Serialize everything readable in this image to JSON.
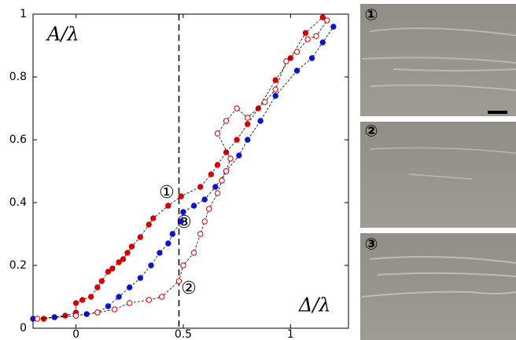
{
  "chart_data": {
    "type": "scatter",
    "y_label": "A/λ",
    "x_label": "Δ/λ",
    "xlim": [
      -0.2,
      1.27
    ],
    "ylim": [
      0,
      1
    ],
    "xticks": [
      0,
      0.5,
      1
    ],
    "yticks": [
      0,
      0.2,
      0.4,
      0.6,
      0.8,
      1
    ],
    "vline": 0.48,
    "annotations": [
      "①",
      "②",
      "③"
    ],
    "series": [
      {
        "color": "#d40000",
        "filled": true,
        "x": [
          -0.2,
          -0.15,
          -0.1,
          -0.05,
          0,
          0,
          0.03,
          0.07,
          0.1,
          0.12,
          0.15,
          0.17,
          0.2,
          0.22,
          0.24,
          0.26,
          0.3,
          0.34,
          0.36,
          0.43,
          0.49,
          0.58,
          0.63,
          0.66,
          0.7,
          0.75,
          0.8,
          0.85,
          0.93,
          1.0,
          1.07,
          1.15
        ],
        "values": [
          0.03,
          0.03,
          0.035,
          0.04,
          0.05,
          0.08,
          0.09,
          0.1,
          0.13,
          0.15,
          0.18,
          0.19,
          0.21,
          0.22,
          0.24,
          0.26,
          0.29,
          0.33,
          0.35,
          0.39,
          0.42,
          0.45,
          0.49,
          0.52,
          0.56,
          0.6,
          0.65,
          0.7,
          0.79,
          0.86,
          0.94,
          0.99
        ]
      },
      {
        "color": "#0a14c8",
        "filled": true,
        "x": [
          -0.2,
          -0.1,
          0,
          0.05,
          0.1,
          0.15,
          0.2,
          0.25,
          0.3,
          0.35,
          0.39,
          0.43,
          0.45,
          0.49,
          0.5,
          0.55,
          0.6,
          0.65,
          0.7,
          0.76,
          0.8,
          0.86,
          0.93,
          1.03,
          1.1,
          1.15,
          1.2
        ],
        "values": [
          0.03,
          0.035,
          0.04,
          0.045,
          0.05,
          0.07,
          0.1,
          0.13,
          0.16,
          0.2,
          0.24,
          0.27,
          0.3,
          0.34,
          0.37,
          0.39,
          0.41,
          0.45,
          0.5,
          0.55,
          0.6,
          0.66,
          0.74,
          0.82,
          0.86,
          0.91,
          0.96
        ]
      },
      {
        "color": "#d40000",
        "filled": false,
        "x": [
          -0.18,
          0,
          0.1,
          0.18,
          0.25,
          0.34,
          0.4,
          0.48,
          0.5,
          0.55,
          0.58,
          0.6,
          0.62,
          0.66,
          0.68,
          0.7,
          0.72,
          0.66,
          0.7,
          0.75,
          0.8,
          0.88,
          0.93,
          0.98,
          1.03,
          1.08,
          1.12,
          1.17
        ],
        "values": [
          0.03,
          0.04,
          0.05,
          0.06,
          0.08,
          0.09,
          0.1,
          0.15,
          0.2,
          0.24,
          0.3,
          0.34,
          0.38,
          0.43,
          0.47,
          0.5,
          0.54,
          0.62,
          0.66,
          0.7,
          0.67,
          0.72,
          0.76,
          0.85,
          0.88,
          0.92,
          0.93,
          0.98
        ]
      }
    ]
  },
  "images": [
    "①",
    "②",
    "③"
  ]
}
